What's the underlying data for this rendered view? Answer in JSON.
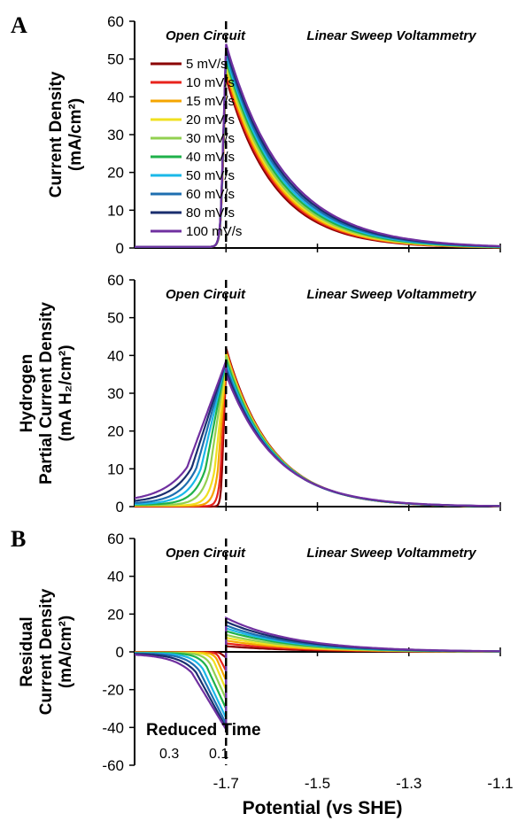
{
  "figure": {
    "panel_letters": [
      "A",
      "B"
    ],
    "x_axis_label": "Potential (vs SHE)",
    "x_ticks": [
      "-1.7",
      "-1.5",
      "-1.3",
      "-1.1"
    ],
    "regions": [
      "Open Circuit",
      "Linear Sweep Voltammetry"
    ],
    "reduced_time": {
      "label": "Reduced Time",
      "ticks": [
        "0.3",
        "0.1"
      ]
    }
  },
  "series_meta": [
    {
      "name": "5 mV/s",
      "color": "#8b0000"
    },
    {
      "name": "10 mV/s",
      "color": "#e8231c"
    },
    {
      "name": "15 mV/s",
      "color": "#f5a500"
    },
    {
      "name": "20 mV/s",
      "color": "#f0e020"
    },
    {
      "name": "30 mV/s",
      "color": "#92d050"
    },
    {
      "name": "40 mV/s",
      "color": "#1fb14a"
    },
    {
      "name": "50 mV/s",
      "color": "#1ab8e8"
    },
    {
      "name": "60 mV/s",
      "color": "#1e6fb0"
    },
    {
      "name": "80 mV/s",
      "color": "#1a2e6e"
    },
    {
      "name": "100 mV/s",
      "color": "#7030a0"
    }
  ],
  "chart_data": [
    {
      "type": "line",
      "panel": "A",
      "ylabel_lines": [
        "Current Density",
        "(mA/cm²)"
      ],
      "ylim": [
        0,
        60
      ],
      "y_ticks": [
        0,
        10,
        20,
        30,
        40,
        50,
        60
      ],
      "x_ticks": [
        "-1.7",
        "-1.5",
        "-1.3",
        "-1.1"
      ],
      "xlim": [
        -1.9,
        -1.1
      ],
      "divider_x": -1.7,
      "legend": "top-left",
      "series": [
        {
          "name": "5 mV/s",
          "oc": {
            "start": 0.3,
            "onset": -1.71,
            "width": 0.004,
            "peak": 45.0
          },
          "lsv": {
            "peak": 45.0,
            "decay": 0.105
          }
        },
        {
          "name": "10 mV/s",
          "oc": {
            "start": 0.3,
            "onset": -1.71,
            "width": 0.004,
            "peak": 46.0
          },
          "lsv": {
            "peak": 46.0,
            "decay": 0.107
          }
        },
        {
          "name": "15 mV/s",
          "oc": {
            "start": 0.3,
            "onset": -1.71,
            "width": 0.004,
            "peak": 47.0
          },
          "lsv": {
            "peak": 47.0,
            "decay": 0.109
          }
        },
        {
          "name": "20 mV/s",
          "oc": {
            "start": 0.3,
            "onset": -1.71,
            "width": 0.004,
            "peak": 48.0
          },
          "lsv": {
            "peak": 48.0,
            "decay": 0.111
          }
        },
        {
          "name": "30 mV/s",
          "oc": {
            "start": 0.3,
            "onset": -1.71,
            "width": 0.004,
            "peak": 49.0
          },
          "lsv": {
            "peak": 49.0,
            "decay": 0.113
          }
        },
        {
          "name": "40 mV/s",
          "oc": {
            "start": 0.3,
            "onset": -1.71,
            "width": 0.004,
            "peak": 50.0
          },
          "lsv": {
            "peak": 50.0,
            "decay": 0.116
          }
        },
        {
          "name": "50 mV/s",
          "oc": {
            "start": 0.3,
            "onset": -1.71,
            "width": 0.004,
            "peak": 51.0
          },
          "lsv": {
            "peak": 51.0,
            "decay": 0.119
          }
        },
        {
          "name": "60 mV/s",
          "oc": {
            "start": 0.3,
            "onset": -1.71,
            "width": 0.004,
            "peak": 52.0
          },
          "lsv": {
            "peak": 52.0,
            "decay": 0.122
          }
        },
        {
          "name": "80 mV/s",
          "oc": {
            "start": 0.3,
            "onset": -1.71,
            "width": 0.004,
            "peak": 53.0
          },
          "lsv": {
            "peak": 53.0,
            "decay": 0.125
          }
        },
        {
          "name": "100 mV/s",
          "oc": {
            "start": 0.3,
            "onset": -1.71,
            "width": 0.004,
            "peak": 54.0
          },
          "lsv": {
            "peak": 54.0,
            "decay": 0.128
          }
        }
      ]
    },
    {
      "type": "line",
      "panel": "A2",
      "ylabel_lines": [
        "Hydrogen",
        "Partial Current Density",
        "(mA H₂/cm²)"
      ],
      "ylim": [
        0,
        60
      ],
      "y_ticks": [
        0,
        10,
        20,
        30,
        40,
        50,
        60
      ],
      "x_ticks": [
        "-1.7",
        "-1.5",
        "-1.3",
        "-1.1"
      ],
      "xlim": [
        -1.9,
        -1.1
      ],
      "divider_x": -1.7,
      "series": [
        {
          "name": "5 mV/s",
          "oc": {
            "start": 0.0,
            "onset": -1.709,
            "width": 0.003,
            "peak": 36.0
          },
          "lsv": {
            "peak": 42.0,
            "decay": 0.1
          }
        },
        {
          "name": "10 mV/s",
          "oc": {
            "start": 0.1,
            "onset": -1.712,
            "width": 0.006,
            "peak": 37.0
          },
          "lsv": {
            "peak": 41.5,
            "decay": 0.1
          }
        },
        {
          "name": "15 mV/s",
          "oc": {
            "start": 0.2,
            "onset": -1.718,
            "width": 0.01,
            "peak": 37.5
          },
          "lsv": {
            "peak": 41.0,
            "decay": 0.101
          }
        },
        {
          "name": "20 mV/s",
          "oc": {
            "start": 0.3,
            "onset": -1.725,
            "width": 0.014,
            "peak": 38.0
          },
          "lsv": {
            "peak": 40.5,
            "decay": 0.101
          }
        },
        {
          "name": "30 mV/s",
          "oc": {
            "start": 0.4,
            "onset": -1.735,
            "width": 0.02,
            "peak": 38.5
          },
          "lsv": {
            "peak": 40.0,
            "decay": 0.102
          }
        },
        {
          "name": "40 mV/s",
          "oc": {
            "start": 0.5,
            "onset": -1.745,
            "width": 0.026,
            "peak": 38.5
          },
          "lsv": {
            "peak": 39.0,
            "decay": 0.103
          }
        },
        {
          "name": "50 mV/s",
          "oc": {
            "start": 0.6,
            "onset": -1.755,
            "width": 0.032,
            "peak": 38.5
          },
          "lsv": {
            "peak": 38.0,
            "decay": 0.104
          }
        },
        {
          "name": "60 mV/s",
          "oc": {
            "start": 0.7,
            "onset": -1.765,
            "width": 0.038,
            "peak": 38.5
          },
          "lsv": {
            "peak": 37.0,
            "decay": 0.105
          }
        },
        {
          "name": "80 mV/s",
          "oc": {
            "start": 0.9,
            "onset": -1.775,
            "width": 0.046,
            "peak": 38.5
          },
          "lsv": {
            "peak": 36.0,
            "decay": 0.107
          }
        },
        {
          "name": "100 mV/s",
          "oc": {
            "start": 1.1,
            "onset": -1.785,
            "width": 0.055,
            "peak": 38.5
          },
          "lsv": {
            "peak": 35.0,
            "decay": 0.109
          }
        }
      ]
    },
    {
      "type": "line",
      "panel": "B",
      "ylabel_lines": [
        "Residual",
        "Current Density",
        "(mA/cm²)"
      ],
      "ylim": [
        -60,
        60
      ],
      "y_ticks": [
        -60,
        -40,
        -20,
        0,
        20,
        40,
        60
      ],
      "x_ticks": [
        "-1.7",
        "-1.5",
        "-1.3",
        "-1.1"
      ],
      "xlim": [
        -1.9,
        -1.1
      ],
      "divider_x": -1.7,
      "series": [
        {
          "name": "5 mV/s",
          "oc": {
            "start": -0.1,
            "onset": -1.712,
            "width": 0.004,
            "peak": -3.0
          },
          "lsv": {
            "peak": 3.0,
            "decay": 0.15
          }
        },
        {
          "name": "10 mV/s",
          "oc": {
            "start": -0.2,
            "onset": -1.716,
            "width": 0.006,
            "peak": -10.0
          },
          "lsv": {
            "peak": 4.5,
            "decay": 0.15
          }
        },
        {
          "name": "15 mV/s",
          "oc": {
            "start": -0.3,
            "onset": -1.72,
            "width": 0.009,
            "peak": -15.0
          },
          "lsv": {
            "peak": 6.0,
            "decay": 0.15
          }
        },
        {
          "name": "20 mV/s",
          "oc": {
            "start": -0.4,
            "onset": -1.726,
            "width": 0.012,
            "peak": -20.0
          },
          "lsv": {
            "peak": 7.5,
            "decay": 0.15
          }
        },
        {
          "name": "30 mV/s",
          "oc": {
            "start": -0.5,
            "onset": -1.734,
            "width": 0.016,
            "peak": -25.0
          },
          "lsv": {
            "peak": 9.0,
            "decay": 0.15
          }
        },
        {
          "name": "40 mV/s",
          "oc": {
            "start": -0.6,
            "onset": -1.742,
            "width": 0.02,
            "peak": -30.0
          },
          "lsv": {
            "peak": 11.0,
            "decay": 0.15
          }
        },
        {
          "name": "50 mV/s",
          "oc": {
            "start": -0.7,
            "onset": -1.75,
            "width": 0.025,
            "peak": -35.0
          },
          "lsv": {
            "peak": 12.5,
            "decay": 0.15
          }
        },
        {
          "name": "60 mV/s",
          "oc": {
            "start": -0.8,
            "onset": -1.758,
            "width": 0.03,
            "peak": -38.0
          },
          "lsv": {
            "peak": 14.0,
            "decay": 0.15
          }
        },
        {
          "name": "80 mV/s",
          "oc": {
            "start": -0.9,
            "onset": -1.766,
            "width": 0.036,
            "peak": -40.0
          },
          "lsv": {
            "peak": 16.0,
            "decay": 0.15
          }
        },
        {
          "name": "100 mV/s",
          "oc": {
            "start": -1.0,
            "onset": -1.775,
            "width": 0.043,
            "peak": -41.0
          },
          "lsv": {
            "peak": 18.0,
            "decay": 0.15
          }
        }
      ]
    }
  ]
}
